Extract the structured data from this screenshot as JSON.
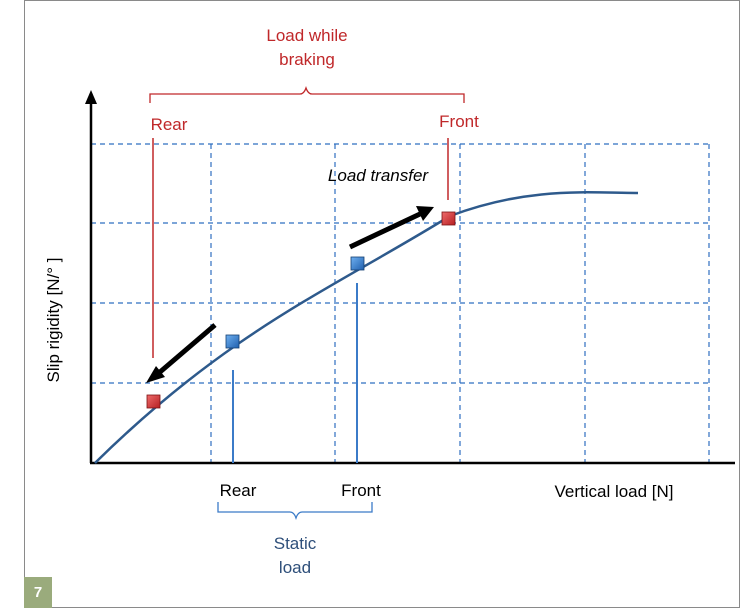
{
  "colors": {
    "frame": "#8a8a8a",
    "grid": "#2f6fc0",
    "curve": "#2e5a8c",
    "braking": "#c0282a",
    "static": "#3b7bc8",
    "arrow": "#000000",
    "static_label": "#2e4f7a",
    "badge": "#9aab7c"
  },
  "labels": {
    "braking_title_line1": "Load while",
    "braking_title_line2": "braking",
    "braking_rear": "Rear",
    "braking_front": "Front",
    "load_transfer": "Load transfer",
    "static_rear": "Rear",
    "static_front": "Front",
    "static_title_line1": "Static",
    "static_title_line2": "load",
    "x_axis": "Vertical load [N]",
    "y_axis": "Slip rigidity [N/° ]"
  },
  "markers": [
    {
      "name": "braking-rear-marker",
      "kind": "braking"
    },
    {
      "name": "static-rear-marker",
      "kind": "static"
    },
    {
      "name": "static-front-marker",
      "kind": "static"
    },
    {
      "name": "braking-front-marker",
      "kind": "braking"
    }
  ],
  "page_number": "7"
}
